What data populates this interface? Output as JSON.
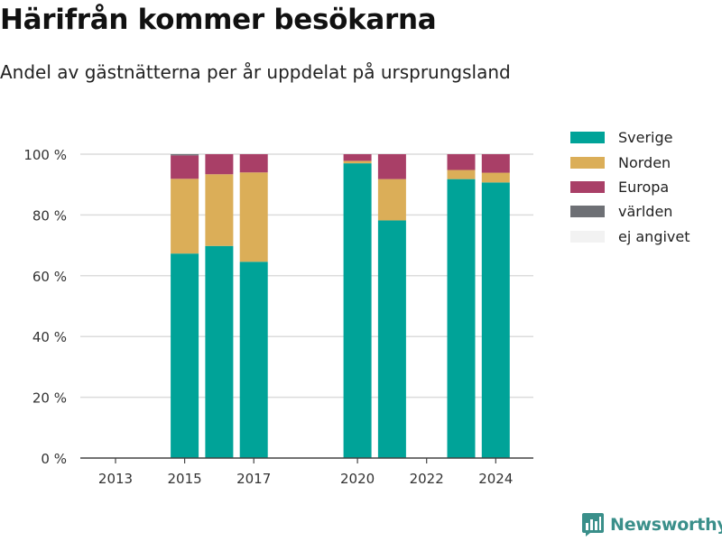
{
  "header": {
    "title": "Härifrån kommer besökarna",
    "subtitle": "Andel av gästnätterna per år uppdelat på ursprungsland"
  },
  "branding": {
    "name": "Newsworthy",
    "icon": "bar-chart-logo-icon",
    "color": "#3a8f8a"
  },
  "chart_data": {
    "type": "bar",
    "stacked": true,
    "title": "Härifrån kommer besökarna",
    "subtitle": "Andel av gästnätterna per år uppdelat på ursprungsland",
    "xlabel": "",
    "ylabel": "",
    "x_tick_labels": [
      "2013",
      "2015",
      "2017",
      "2020",
      "2022",
      "2024"
    ],
    "y_ticks": [
      0,
      20,
      40,
      60,
      80,
      100
    ],
    "y_tick_suffix": " %",
    "ylim": [
      0,
      100
    ],
    "grid": true,
    "legend_position": "right",
    "categories": [
      "2013",
      "2014",
      "2015",
      "2016",
      "2017",
      "2018",
      "2019",
      "2020",
      "2021",
      "2022",
      "2023",
      "2024"
    ],
    "series": [
      {
        "name": "Sverige",
        "color": "#00a398",
        "values": [
          null,
          null,
          67.3,
          69.8,
          64.6,
          null,
          null,
          97.0,
          78.2,
          null,
          91.8,
          90.7
        ]
      },
      {
        "name": "Norden",
        "color": "#dbae58",
        "values": [
          null,
          null,
          24.6,
          23.6,
          29.4,
          null,
          null,
          0.8,
          13.6,
          null,
          3.0,
          3.2
        ]
      },
      {
        "name": "Europa",
        "color": "#a93f67",
        "values": [
          null,
          null,
          7.7,
          6.6,
          6.0,
          null,
          null,
          2.2,
          8.2,
          null,
          5.2,
          6.1
        ]
      },
      {
        "name": "världen",
        "color": "#6e7075",
        "values": [
          null,
          null,
          0.4,
          0.0,
          0.0,
          null,
          null,
          0.0,
          0.0,
          null,
          0.0,
          0.0
        ]
      },
      {
        "name": "ej angivet",
        "color": "#f2f2f2",
        "values": [
          null,
          null,
          0.0,
          0.0,
          0.0,
          null,
          null,
          0.0,
          0.0,
          null,
          0.0,
          0.0
        ]
      }
    ]
  }
}
